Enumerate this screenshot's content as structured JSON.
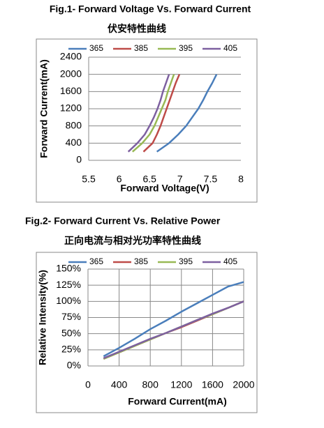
{
  "chart_data": [
    {
      "type": "line",
      "title": "Fig.1- Forward Voltage Vs. Forward Current",
      "subtitle": "伏安特性曲线",
      "x_label": "Forward Voltage(V)",
      "y_label": "Forward Current(mA)",
      "xlim": [
        5.5,
        8
      ],
      "xticks": [
        5.5,
        6,
        6.5,
        7,
        7.5,
        8
      ],
      "ylim": [
        0,
        2400
      ],
      "yticks": [
        0,
        400,
        800,
        1200,
        1600,
        2000,
        2400
      ],
      "grid": "horizontal",
      "legend": "top",
      "series": [
        {
          "name": "365",
          "color": "#4a7ebb",
          "x": [
            6.62,
            6.82,
            6.97,
            7.1,
            7.2,
            7.3,
            7.38,
            7.45,
            7.53,
            7.6
          ],
          "values": [
            200,
            400,
            600,
            800,
            1000,
            1200,
            1400,
            1600,
            1800,
            2000
          ]
        },
        {
          "name": "385",
          "color": "#be4b48",
          "x": [
            6.4,
            6.55,
            6.62,
            6.68,
            6.73,
            6.78,
            6.83,
            6.88,
            6.93,
            6.99
          ],
          "values": [
            200,
            400,
            600,
            800,
            1000,
            1200,
            1400,
            1600,
            1800,
            2000
          ]
        },
        {
          "name": "395",
          "color": "#98b954",
          "x": [
            6.22,
            6.38,
            6.5,
            6.58,
            6.64,
            6.7,
            6.76,
            6.8,
            6.85,
            6.9
          ],
          "values": [
            200,
            400,
            600,
            800,
            1000,
            1200,
            1400,
            1600,
            1800,
            2000
          ]
        },
        {
          "name": "405",
          "color": "#7d60a0",
          "x": [
            6.15,
            6.3,
            6.42,
            6.5,
            6.57,
            6.63,
            6.68,
            6.72,
            6.77,
            6.82
          ],
          "values": [
            200,
            400,
            600,
            800,
            1000,
            1200,
            1400,
            1600,
            1800,
            2000
          ]
        }
      ]
    },
    {
      "type": "line",
      "title": "Fig.2- Forward Current Vs. Relative Power",
      "subtitle": "正向电流与相对光功率特性曲线",
      "x_label": "Forward Current(mA)",
      "y_label": "Relative Intensity(%)",
      "xlim": [
        0,
        2000
      ],
      "xticks": [
        0,
        400,
        800,
        1200,
        1600,
        2000
      ],
      "ylim": [
        0,
        150
      ],
      "yticks": [
        {
          "value": 0,
          "label": "0%"
        },
        {
          "value": 25,
          "label": "25%"
        },
        {
          "value": 50,
          "label": "50%"
        },
        {
          "value": 75,
          "label": "75%"
        },
        {
          "value": 100,
          "label": "100%"
        },
        {
          "value": 125,
          "label": "125%"
        },
        {
          "value": 150,
          "label": "150%"
        }
      ],
      "grid": "both",
      "legend": "top",
      "x": [
        200,
        400,
        600,
        800,
        1000,
        1200,
        1400,
        1600,
        1800,
        2000
      ],
      "series": [
        {
          "name": "365",
          "color": "#4a7ebb",
          "values": [
            15,
            28,
            42,
            57,
            70,
            84,
            97,
            110,
            123,
            130
          ]
        },
        {
          "name": "385",
          "color": "#be4b48",
          "values": [
            11,
            21,
            31,
            41,
            51,
            60,
            70,
            80,
            90,
            100
          ]
        },
        {
          "name": "395",
          "color": "#98b954",
          "values": [
            11,
            21,
            31,
            41,
            51,
            61,
            71,
            80,
            90,
            100
          ]
        },
        {
          "name": "405",
          "color": "#7d60a0",
          "values": [
            12,
            22,
            32,
            42,
            51,
            61,
            71,
            81,
            90,
            100
          ]
        }
      ]
    }
  ]
}
